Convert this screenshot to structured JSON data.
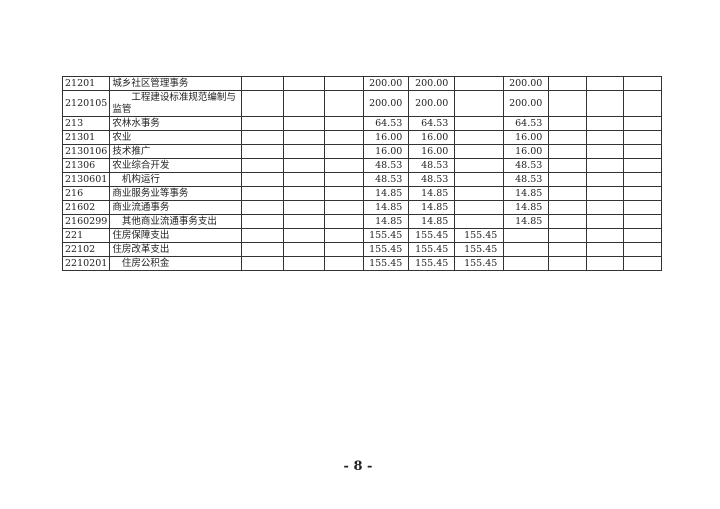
{
  "table": {
    "rows": [
      {
        "code": "21201",
        "name": "城乡社区管理事务",
        "c5": "200.00",
        "c6": "200.00",
        "c7": "",
        "c8": "200.00"
      },
      {
        "code": "2120105",
        "name": "　　工程建设标准规范编制与监管",
        "c5": "200.00",
        "c6": "200.00",
        "c7": "",
        "c8": "200.00"
      },
      {
        "code": "213",
        "name": "农林水事务",
        "c5": "64.53",
        "c6": "64.53",
        "c7": "",
        "c8": "64.53"
      },
      {
        "code": " 21301",
        "name": "农业",
        "c5": "16.00",
        "c6": "16.00",
        "c7": "",
        "c8": "16.00"
      },
      {
        "code": "2130106",
        "name": "技术推广",
        "c5": "16.00",
        "c6": "16.00",
        "c7": "",
        "c8": "16.00"
      },
      {
        "code": "21306",
        "name": "农业综合开发",
        "c5": "48.53",
        "c6": "48.53",
        "c7": "",
        "c8": "48.53"
      },
      {
        "code": "2130601",
        "name": "　机构运行",
        "c5": "48.53",
        "c6": "48.53",
        "c7": "",
        "c8": "48.53"
      },
      {
        "code": "216",
        "name": "商业服务业等事务",
        "c5": "14.85",
        "c6": "14.85",
        "c7": "",
        "c8": "14.85"
      },
      {
        "code": "21602",
        "name": "商业流通事务",
        "c5": "14.85",
        "c6": "14.85",
        "c7": "",
        "c8": "14.85"
      },
      {
        "code": "2160299",
        "name": "　其他商业流通事务支出",
        "c5": "14.85",
        "c6": "14.85",
        "c7": "",
        "c8": "14.85"
      },
      {
        "code": "221",
        "name": "住房保障支出",
        "c5": "155.45",
        "c6": "155.45",
        "c7": "155.45",
        "c8": ""
      },
      {
        "code": "22102",
        "name": "住房改革支出",
        "c5": "155.45",
        "c6": "155.45",
        "c7": "155.45",
        "c8": ""
      },
      {
        "code": "2210201",
        "name": "　住房公积金",
        "c5": "155.45",
        "c6": "155.45",
        "c7": "155.45",
        "c8": ""
      }
    ]
  },
  "footer": {
    "page_number": "- 8 -"
  }
}
